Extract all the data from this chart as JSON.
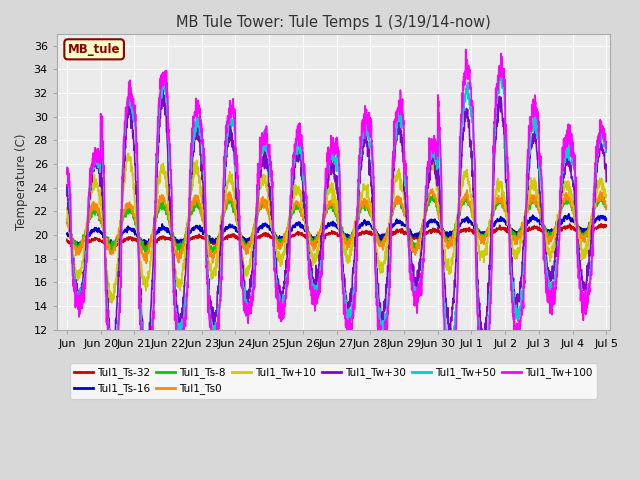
{
  "title": "MB Tule Tower: Tule Temps 1 (3/19/14-now)",
  "ylabel": "Temperature (C)",
  "ylim": [
    12,
    37
  ],
  "yticks": [
    12,
    14,
    16,
    18,
    20,
    22,
    24,
    26,
    28,
    30,
    32,
    34,
    36
  ],
  "fig_facecolor": "#d8d8d8",
  "ax_facecolor": "#ebebeb",
  "annotation_box": {
    "label": "MB_tule",
    "facecolor": "#ffffcc",
    "edgecolor": "#8B0000",
    "textcolor": "#8B0000"
  },
  "series": [
    {
      "label": "Tul1_Ts-32",
      "color": "#cc0000",
      "lw": 1.2
    },
    {
      "label": "Tul1_Ts-16",
      "color": "#0000cc",
      "lw": 1.2
    },
    {
      "label": "Tul1_Ts-8",
      "color": "#00cc00",
      "lw": 1.2
    },
    {
      "label": "Tul1_Ts0",
      "color": "#ff8800",
      "lw": 1.2
    },
    {
      "label": "Tul1_Tw+10",
      "color": "#cccc00",
      "lw": 1.2
    },
    {
      "label": "Tul1_Tw+30",
      "color": "#8800cc",
      "lw": 1.2
    },
    {
      "label": "Tul1_Tw+50",
      "color": "#00cccc",
      "lw": 1.2
    },
    {
      "label": "Tul1_Tw+100",
      "color": "#ff00ff",
      "lw": 1.2
    }
  ],
  "xtick_labels": [
    "Jun 20",
    "Jun 21",
    "Jun 22",
    "Jun 23",
    "Jun 24",
    "Jun 25",
    "Jun 26",
    "Jun 27",
    "Jun 28",
    "Jun 29",
    "Jun 30",
    "Jul 1",
    "Jul 2",
    "Jul 3",
    "Jul 4",
    "Jul 5"
  ],
  "x_start_label": "Jun"
}
